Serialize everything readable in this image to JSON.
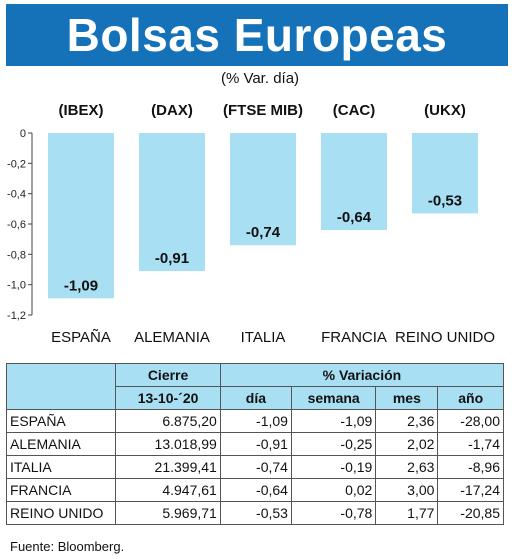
{
  "title": "Bolsas Europeas",
  "subtitle": "(% Var. día)",
  "chart_data": {
    "type": "bar",
    "categories": [
      "(IBEX)",
      "(DAX)",
      "(FTSE MIB)",
      "(CAC)",
      "(UKX)"
    ],
    "countries": [
      "ESPAÑA",
      "ALEMANIA",
      "ITALIA",
      "FRANCIA",
      "REINO UNIDO"
    ],
    "values": [
      -1.09,
      -0.91,
      -0.74,
      -0.64,
      -0.53
    ],
    "value_labels": [
      "-1,09",
      "-0,91",
      "-0,74",
      "-0,64",
      "-0,53"
    ],
    "y_ticks": [
      "0",
      "-0,2",
      "-0,4",
      "-0,6",
      "-0,8",
      "-1,0",
      "-1,2"
    ],
    "ylim": [
      -1.2,
      0
    ],
    "bar_color": "#a8dff3",
    "grid": false
  },
  "table": {
    "header_cierre": "Cierre",
    "header_variacion": "% Variación",
    "header_date": "13-10-´20",
    "header_dia": "día",
    "header_semana": "semana",
    "header_mes": "mes",
    "header_ano": "año",
    "rows": [
      {
        "name": "ESPAÑA",
        "cierre": "6.875,20",
        "dia": "-1,09",
        "semana": "-1,09",
        "mes": "2,36",
        "ano": "-28,00"
      },
      {
        "name": "ALEMANIA",
        "cierre": "13.018,99",
        "dia": "-0,91",
        "semana": "-0,25",
        "mes": "2,02",
        "ano": "-1,74"
      },
      {
        "name": "ITALIA",
        "cierre": "21.399,41",
        "dia": "-0,74",
        "semana": "-0,19",
        "mes": "2,63",
        "ano": "-8,96"
      },
      {
        "name": "FRANCIA",
        "cierre": "4.947,61",
        "dia": "-0,64",
        "semana": "0,02",
        "mes": "3,00",
        "ano": "-17,24"
      },
      {
        "name": "REINO UNIDO",
        "cierre": "5.969,71",
        "dia": "-0,53",
        "semana": "-0,78",
        "mes": "1,77",
        "ano": "-20,85"
      }
    ]
  },
  "source": "Fuente: Bloomberg."
}
